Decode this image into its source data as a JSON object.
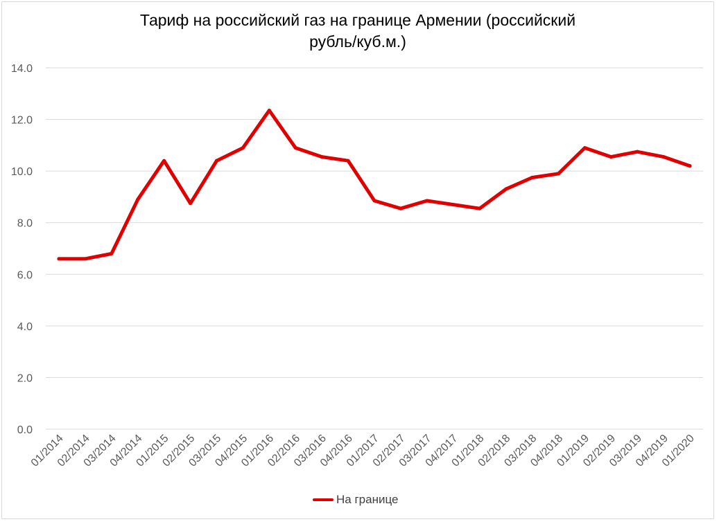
{
  "chart_data": {
    "type": "line",
    "title_line1": "Тариф на российский газ на границе Армении (российский",
    "title_line2": "рубль/куб.м.)",
    "xlabel": "",
    "ylabel": "",
    "ylim": [
      0,
      14
    ],
    "yticks": [
      "0.0",
      "2.0",
      "4.0",
      "6.0",
      "8.0",
      "10.0",
      "12.0",
      "14.0"
    ],
    "categories": [
      "01/2014",
      "02/2014",
      "03/2014",
      "04/2014",
      "01/2015",
      "02/2015",
      "03/2015",
      "04/2015",
      "01/2016",
      "02/2016",
      "03/2016",
      "04/2016",
      "01/2017",
      "02/2017",
      "03/2017",
      "04/2017",
      "01/2018",
      "02/2018",
      "03/2018",
      "04/2018",
      "01/2019",
      "02/2019",
      "03/2019",
      "04/2019",
      "01/2020"
    ],
    "series": [
      {
        "name": "На границе",
        "color": "#e00000",
        "values": [
          6.6,
          6.6,
          6.8,
          8.9,
          10.4,
          8.75,
          10.4,
          10.9,
          12.35,
          10.9,
          10.55,
          10.4,
          8.85,
          8.55,
          8.85,
          8.7,
          8.55,
          9.3,
          9.75,
          9.9,
          10.9,
          10.55,
          10.75,
          10.55,
          10.2
        ]
      }
    ],
    "grid": true,
    "legend_position": "bottom"
  }
}
